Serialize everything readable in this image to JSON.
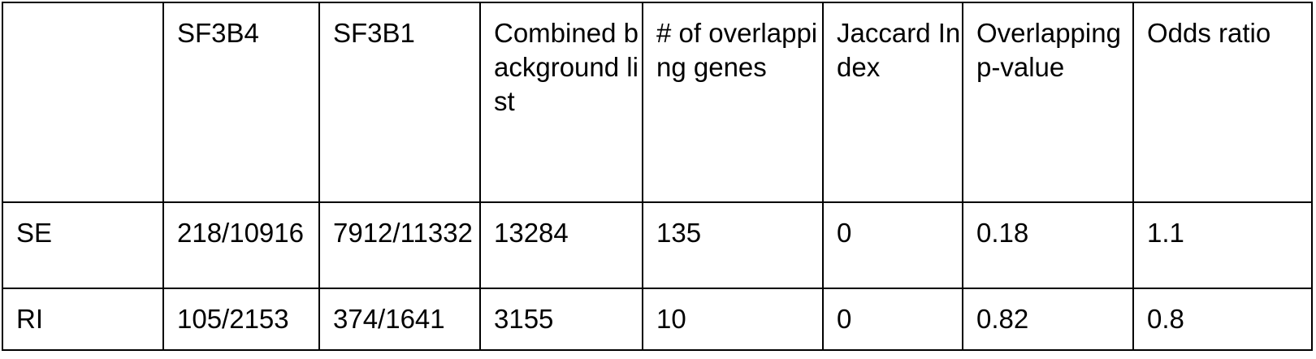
{
  "table": {
    "headers": [
      "",
      "SF3B4",
      "SF3B1",
      "Combined background list",
      "# of overlapping genes",
      "Jaccard Index",
      "Overlapping p-value",
      "Odds ratio"
    ],
    "rows": [
      {
        "label": "SE",
        "sf3b4": "218/10916",
        "sf3b1": "7912/11332",
        "background": "13284",
        "overlap": "135",
        "jaccard": "0",
        "pvalue": "0.18",
        "odds": "1.1"
      },
      {
        "label": "RI",
        "sf3b4": "105/2153",
        "sf3b1": "374/1641",
        "background": "3155",
        "overlap": "10",
        "jaccard": "0",
        "pvalue": "0.82",
        "odds": "0.8"
      }
    ]
  }
}
